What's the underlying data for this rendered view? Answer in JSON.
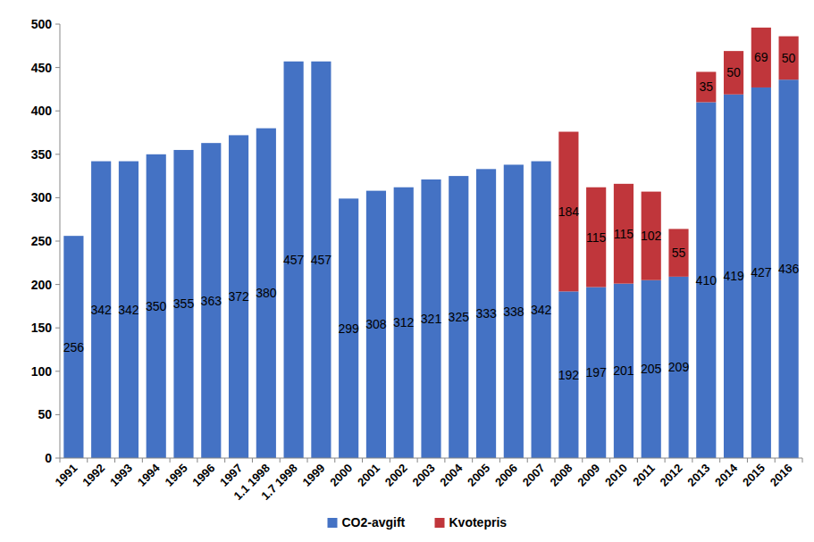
{
  "chart_data": {
    "type": "bar",
    "stacked": true,
    "data_labels": true,
    "legend": "bottom",
    "grid": false,
    "categories": [
      "1991",
      "1992",
      "1993",
      "1994",
      "1995",
      "1996",
      "1997",
      "1.1 1998",
      "1.7 1998",
      "1999",
      "2000",
      "2001",
      "2002",
      "2003",
      "2004",
      "2005",
      "2006",
      "2007",
      "2008",
      "2009",
      "2010",
      "2011",
      "2012",
      "2013",
      "2014",
      "2015",
      "2016"
    ],
    "series": [
      {
        "name": "CO2-avgift",
        "color": "#4472c4",
        "values": [
          256,
          342,
          342,
          350,
          355,
          363,
          372,
          380,
          457,
          457,
          299,
          308,
          312,
          321,
          325,
          333,
          338,
          342,
          192,
          197,
          201,
          205,
          209,
          410,
          419,
          427,
          436
        ]
      },
      {
        "name": "Kvotepris",
        "color": "#c0363b",
        "values": [
          null,
          null,
          null,
          null,
          null,
          null,
          null,
          null,
          null,
          null,
          null,
          null,
          null,
          null,
          null,
          null,
          null,
          null,
          184,
          115,
          115,
          102,
          55,
          35,
          50,
          69,
          50
        ]
      }
    ],
    "ylim": [
      0,
      500
    ],
    "yticks": [
      0,
      50,
      100,
      150,
      200,
      250,
      300,
      350,
      400,
      450,
      500
    ]
  }
}
